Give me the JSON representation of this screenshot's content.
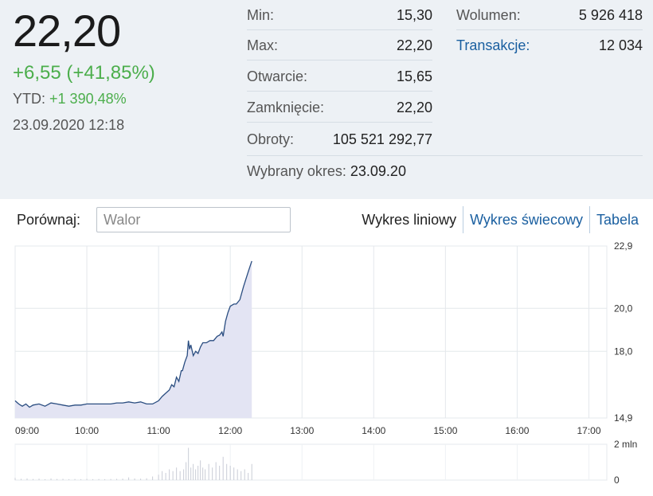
{
  "quote": {
    "price": "22,20",
    "change": "+6,55 (+41,85%)",
    "ytd_label": "YTD:",
    "ytd_value": "+1 390,48%",
    "datetime": "23.09.2020 12:18"
  },
  "stats_left": [
    {
      "label": "Min:",
      "value": "15,30"
    },
    {
      "label": "Max:",
      "value": "22,20"
    },
    {
      "label": "Otwarcie:",
      "value": "15,65"
    },
    {
      "label": "Zamknięcie:",
      "value": "22,20"
    },
    {
      "label": "Obroty:",
      "value": "105 521 292,77"
    }
  ],
  "stats_right": [
    {
      "label": "Wolumen:",
      "value": "5 926 418"
    },
    {
      "label": "Transakcje:",
      "value": "12 034"
    }
  ],
  "period": {
    "label": "Wybrany okres:",
    "value": "23.09.20"
  },
  "compare": {
    "label": "Porównaj:",
    "placeholder": "Walor"
  },
  "tabs": [
    "Wykres liniowy",
    "Wykres świecowy",
    "Tabela"
  ],
  "colors": {
    "line": "#2a4d80",
    "area": "#e3e4f3",
    "positive": "#4cae4c",
    "link": "#1a5fa0"
  },
  "chart_data": [
    {
      "type": "area",
      "ylim": [
        14.9,
        22.9
      ],
      "y_ticks": [
        {
          "label": "22,9",
          "value": 22.9
        },
        {
          "label": "20,0",
          "value": 20.0
        },
        {
          "label": "18,0",
          "value": 18.0
        },
        {
          "label": "14,9",
          "value": 14.9
        }
      ],
      "x_ticks": [
        {
          "label": "09:00",
          "value": "09:00"
        },
        {
          "label": "10:00",
          "value": "10:00"
        },
        {
          "label": "11:00",
          "value": "11:00"
        },
        {
          "label": "12:00",
          "value": "12:00"
        },
        {
          "label": "13:00",
          "value": "13:00"
        },
        {
          "label": "14:00",
          "value": "14:00"
        },
        {
          "label": "15:00",
          "value": "15:00"
        },
        {
          "label": "16:00",
          "value": "16:00"
        },
        {
          "label": "17:00",
          "value": "17:00"
        }
      ],
      "x_range": [
        "09:00",
        "17:15"
      ],
      "series": [
        {
          "points": [
            [
              "09:00",
              15.7
            ],
            [
              "09:03",
              15.55
            ],
            [
              "09:06",
              15.45
            ],
            [
              "09:09",
              15.55
            ],
            [
              "09:12",
              15.4
            ],
            [
              "09:15",
              15.5
            ],
            [
              "09:20",
              15.55
            ],
            [
              "09:25",
              15.45
            ],
            [
              "09:30",
              15.6
            ],
            [
              "09:35",
              15.55
            ],
            [
              "09:40",
              15.5
            ],
            [
              "09:45",
              15.45
            ],
            [
              "09:50",
              15.5
            ],
            [
              "09:55",
              15.5
            ],
            [
              "10:00",
              15.55
            ],
            [
              "10:10",
              15.55
            ],
            [
              "10:20",
              15.55
            ],
            [
              "10:25",
              15.6
            ],
            [
              "10:30",
              15.6
            ],
            [
              "10:35",
              15.65
            ],
            [
              "10:40",
              15.6
            ],
            [
              "10:45",
              15.65
            ],
            [
              "10:50",
              15.55
            ],
            [
              "10:55",
              15.55
            ],
            [
              "11:00",
              15.7
            ],
            [
              "11:03",
              15.9
            ],
            [
              "11:06",
              16.05
            ],
            [
              "11:09",
              16.2
            ],
            [
              "11:11",
              16.45
            ],
            [
              "11:13",
              16.35
            ],
            [
              "11:15",
              16.8
            ],
            [
              "11:17",
              16.6
            ],
            [
              "11:19",
              17.1
            ],
            [
              "11:20",
              17.1
            ],
            [
              "11:22",
              17.5
            ],
            [
              "11:24",
              17.8
            ],
            [
              "11:25",
              18.5
            ],
            [
              "11:26",
              18.1
            ],
            [
              "11:27",
              18.3
            ],
            [
              "11:29",
              17.8
            ],
            [
              "11:31",
              18.0
            ],
            [
              "11:33",
              17.9
            ],
            [
              "11:35",
              18.2
            ],
            [
              "11:37",
              18.4
            ],
            [
              "11:40",
              18.4
            ],
            [
              "11:43",
              18.5
            ],
            [
              "11:46",
              18.5
            ],
            [
              "11:49",
              18.7
            ],
            [
              "11:51",
              18.75
            ],
            [
              "11:53",
              18.9
            ],
            [
              "11:54",
              18.7
            ],
            [
              "11:56",
              19.4
            ],
            [
              "11:58",
              19.8
            ],
            [
              "12:00",
              20.1
            ],
            [
              "12:03",
              20.2
            ],
            [
              "12:05",
              20.2
            ],
            [
              "12:08",
              20.4
            ],
            [
              "12:11",
              21.0
            ],
            [
              "12:15",
              21.7
            ],
            [
              "12:18",
              22.2
            ]
          ]
        }
      ]
    },
    {
      "type": "bar",
      "ylim": [
        0,
        2000000
      ],
      "y_ticks": [
        {
          "label": "2 mln",
          "value": 2000000
        },
        {
          "label": "0",
          "value": 0
        }
      ],
      "x_range": [
        "09:00",
        "17:15"
      ],
      "series": [
        {
          "points": [
            [
              "09:00",
              120000
            ],
            [
              "09:05",
              70000
            ],
            [
              "09:10",
              90000
            ],
            [
              "09:15",
              60000
            ],
            [
              "09:20",
              80000
            ],
            [
              "09:25",
              50000
            ],
            [
              "09:30",
              90000
            ],
            [
              "09:35",
              60000
            ],
            [
              "09:40",
              70000
            ],
            [
              "09:45",
              50000
            ],
            [
              "09:50",
              60000
            ],
            [
              "09:55",
              50000
            ],
            [
              "10:00",
              70000
            ],
            [
              "10:05",
              50000
            ],
            [
              "10:10",
              60000
            ],
            [
              "10:15",
              50000
            ],
            [
              "10:20",
              60000
            ],
            [
              "10:25",
              70000
            ],
            [
              "10:30",
              80000
            ],
            [
              "10:35",
              150000
            ],
            [
              "10:40",
              90000
            ],
            [
              "10:45",
              80000
            ],
            [
              "10:50",
              100000
            ],
            [
              "10:55",
              200000
            ],
            [
              "11:00",
              300000
            ],
            [
              "11:03",
              500000
            ],
            [
              "11:06",
              400000
            ],
            [
              "11:09",
              600000
            ],
            [
              "11:12",
              500000
            ],
            [
              "11:15",
              700000
            ],
            [
              "11:18",
              500000
            ],
            [
              "11:21",
              600000
            ],
            [
              "11:23",
              1000000
            ],
            [
              "11:25",
              1800000
            ],
            [
              "11:27",
              700000
            ],
            [
              "11:29",
              900000
            ],
            [
              "11:31",
              600000
            ],
            [
              "11:33",
              800000
            ],
            [
              "11:35",
              1100000
            ],
            [
              "11:37",
              700000
            ],
            [
              "11:39",
              600000
            ],
            [
              "11:42",
              900000
            ],
            [
              "11:45",
              700000
            ],
            [
              "11:48",
              1000000
            ],
            [
              "11:51",
              800000
            ],
            [
              "11:54",
              1300000
            ],
            [
              "11:57",
              900000
            ],
            [
              "12:00",
              800000
            ],
            [
              "12:03",
              700000
            ],
            [
              "12:06",
              600000
            ],
            [
              "12:09",
              500000
            ],
            [
              "12:12",
              600000
            ],
            [
              "12:15",
              400000
            ],
            [
              "12:18",
              900000
            ]
          ]
        }
      ]
    }
  ]
}
